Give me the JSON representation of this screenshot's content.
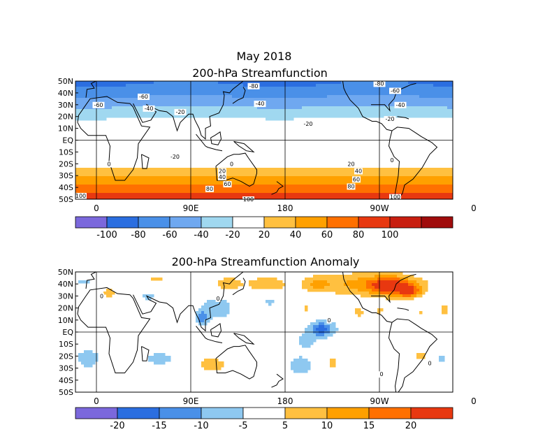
{
  "figure": {
    "title_line1": "May 2018",
    "title_line2": "200-hPa Streamfunction"
  },
  "chart_data": [
    {
      "type": "heatmap",
      "title": "200-hPa Streamfunction",
      "xlabel": "",
      "ylabel": "",
      "x_ticks": [
        "0",
        "90E",
        "180",
        "90W",
        "0"
      ],
      "x_tick_lon": [
        0,
        90,
        180,
        270,
        360
      ],
      "y_ticks": [
        "50N",
        "40N",
        "30N",
        "20N",
        "10N",
        "EQ",
        "10S",
        "20S",
        "30S",
        "40S",
        "50S"
      ],
      "y_tick_lat": [
        50,
        40,
        30,
        20,
        10,
        0,
        -10,
        -20,
        -30,
        -40,
        -50
      ],
      "xlim": [
        -20,
        340
      ],
      "ylim": [
        -50,
        50
      ],
      "lat_profile": [
        {
          "lat": 50,
          "value": -85
        },
        {
          "lat": 45,
          "value": -75
        },
        {
          "lat": 40,
          "value": -68
        },
        {
          "lat": 35,
          "value": -55
        },
        {
          "lat": 30,
          "value": -45
        },
        {
          "lat": 25,
          "value": -30
        },
        {
          "lat": 20,
          "value": -22
        },
        {
          "lat": 15,
          "value": -12
        },
        {
          "lat": 10,
          "value": -8
        },
        {
          "lat": 5,
          "value": -5
        },
        {
          "lat": 0,
          "value": -5
        },
        {
          "lat": -5,
          "value": -10
        },
        {
          "lat": -10,
          "value": -12
        },
        {
          "lat": -15,
          "value": -8
        },
        {
          "lat": -20,
          "value": 5
        },
        {
          "lat": -25,
          "value": 25
        },
        {
          "lat": -30,
          "value": 40
        },
        {
          "lat": -35,
          "value": 55
        },
        {
          "lat": -40,
          "value": 68
        },
        {
          "lat": -45,
          "value": 85
        },
        {
          "lat": -50,
          "value": 100
        }
      ],
      "contour_labels": [
        {
          "text": "-80",
          "lon": 150,
          "lat": 46
        },
        {
          "text": "-60",
          "lon": 45,
          "lat": 37
        },
        {
          "text": "-60",
          "lon": 285,
          "lat": 42
        },
        {
          "text": "-80",
          "lon": 270,
          "lat": 48
        },
        {
          "text": "-40",
          "lon": 50,
          "lat": 27
        },
        {
          "text": "-40",
          "lon": 156,
          "lat": 31
        },
        {
          "text": "-40",
          "lon": 290,
          "lat": 30
        },
        {
          "text": "-60",
          "lon": 2,
          "lat": 30
        },
        {
          "text": "-20",
          "lon": 80,
          "lat": 24
        },
        {
          "text": "-20",
          "lon": 202,
          "lat": 14
        },
        {
          "text": "-20",
          "lon": 280,
          "lat": 18
        },
        {
          "text": "-20",
          "lon": 75,
          "lat": -14
        },
        {
          "text": "0",
          "lon": 12,
          "lat": -20
        },
        {
          "text": "0",
          "lon": 129,
          "lat": -20
        },
        {
          "text": "0",
          "lon": 282,
          "lat": -17
        },
        {
          "text": "20",
          "lon": 120,
          "lat": -26
        },
        {
          "text": "20",
          "lon": 243,
          "lat": -20
        },
        {
          "text": "40",
          "lon": 120,
          "lat": -31
        },
        {
          "text": "40",
          "lon": 250,
          "lat": -26
        },
        {
          "text": "60",
          "lon": 125,
          "lat": -37
        },
        {
          "text": "60",
          "lon": 248,
          "lat": -33
        },
        {
          "text": "80",
          "lon": 108,
          "lat": -41
        },
        {
          "text": "80",
          "lon": 243,
          "lat": -39
        },
        {
          "text": "100",
          "lon": -15,
          "lat": -47
        },
        {
          "text": "100",
          "lon": 145,
          "lat": -50
        },
        {
          "text": "100",
          "lon": 285,
          "lat": -48
        }
      ],
      "colorbar": {
        "labels": [
          "-100",
          "-80",
          "-60",
          "-40",
          "-20",
          "20",
          "40",
          "60",
          "80",
          "100"
        ],
        "colors": [
          "#7b68dc",
          "#2b6ee0",
          "#4a90e8",
          "#6fa8f0",
          "#a0d8f0",
          "#ffffff",
          "#ffc040",
          "#ffa000",
          "#ff7000",
          "#e83810",
          "#c81e10",
          "#a00c0c"
        ]
      }
    },
    {
      "type": "heatmap",
      "title": "200-hPa Streamfunction Anomaly",
      "xlabel": "",
      "ylabel": "",
      "x_ticks": [
        "0",
        "90E",
        "180",
        "90W",
        "0"
      ],
      "x_tick_lon": [
        0,
        90,
        180,
        270,
        360
      ],
      "y_ticks": [
        "50N",
        "40N",
        "30N",
        "20N",
        "10N",
        "EQ",
        "10S",
        "20S",
        "30S",
        "40S",
        "50S"
      ],
      "y_tick_lat": [
        50,
        40,
        30,
        20,
        10,
        0,
        -10,
        -20,
        -30,
        -40,
        -50
      ],
      "xlim": [
        -20,
        340
      ],
      "ylim": [
        -50,
        50
      ],
      "blobs": [
        {
          "lon": 260,
          "lat": 40,
          "rx": 55,
          "ry": 10,
          "value": 12
        },
        {
          "lon": 280,
          "lat": 38,
          "rx": 18,
          "ry": 7,
          "value": 19
        },
        {
          "lon": 300,
          "lat": 33,
          "rx": 12,
          "ry": 6,
          "value": 16
        },
        {
          "lon": 125,
          "lat": 40,
          "rx": 15,
          "ry": 7,
          "value": 8
        },
        {
          "lon": 162,
          "lat": 40,
          "rx": 18,
          "ry": 6,
          "value": 9
        },
        {
          "lon": 210,
          "lat": 40,
          "rx": 12,
          "ry": 6,
          "value": 7
        },
        {
          "lon": 12,
          "lat": 32,
          "rx": 8,
          "ry": 6,
          "value": 7
        },
        {
          "lon": 58,
          "lat": 44,
          "rx": 12,
          "ry": 5,
          "value": 6
        },
        {
          "lon": 310,
          "lat": 17,
          "rx": 8,
          "ry": 6,
          "value": 8
        },
        {
          "lon": 332,
          "lat": 18,
          "rx": 6,
          "ry": 6,
          "value": 7
        },
        {
          "lon": 200,
          "lat": 20,
          "rx": 5,
          "ry": 4,
          "value": 6
        },
        {
          "lon": 250,
          "lat": 17,
          "rx": 6,
          "ry": 6,
          "value": 7
        },
        {
          "lon": 270,
          "lat": 18,
          "rx": 7,
          "ry": 5,
          "value": 6
        },
        {
          "lon": 310,
          "lat": -20,
          "rx": 8,
          "ry": 5,
          "value": 7
        },
        {
          "lon": 110,
          "lat": -27,
          "rx": 18,
          "ry": 9,
          "value": 7
        },
        {
          "lon": 225,
          "lat": -25,
          "rx": 6,
          "ry": 6,
          "value": 7
        },
        {
          "lon": 175,
          "lat": -20,
          "rx": 4,
          "ry": 3,
          "value": 6
        },
        {
          "lon": 115,
          "lat": 20,
          "rx": 18,
          "ry": 12,
          "value": -8
        },
        {
          "lon": 100,
          "lat": 12,
          "rx": 6,
          "ry": 6,
          "value": -11
        },
        {
          "lon": 50,
          "lat": 30,
          "rx": 12,
          "ry": 6,
          "value": -6
        },
        {
          "lon": 165,
          "lat": 25,
          "rx": 8,
          "ry": 5,
          "value": -6
        },
        {
          "lon": 215,
          "lat": 3,
          "rx": 20,
          "ry": 9,
          "value": -8
        },
        {
          "lon": 215,
          "lat": 2,
          "rx": 8,
          "ry": 5,
          "value": -11
        },
        {
          "lon": 310,
          "lat": 24,
          "rx": 12,
          "ry": 8,
          "value": -7
        },
        {
          "lon": -8,
          "lat": -22,
          "rx": 14,
          "ry": 9,
          "value": -8
        },
        {
          "lon": 60,
          "lat": -22,
          "rx": 18,
          "ry": 7,
          "value": -7
        },
        {
          "lon": 195,
          "lat": -28,
          "rx": 14,
          "ry": 10,
          "value": -8
        },
        {
          "lon": 200,
          "lat": -8,
          "rx": 10,
          "ry": 7,
          "value": -6
        },
        {
          "lon": 330,
          "lat": -22,
          "rx": 7,
          "ry": 5,
          "value": -6
        },
        {
          "lon": -12,
          "lat": 42,
          "rx": 10,
          "ry": 5,
          "value": -6
        }
      ],
      "contour_labels": [
        {
          "text": "0",
          "lon": 116,
          "lat": 28
        },
        {
          "text": "0",
          "lon": 5,
          "lat": 30
        },
        {
          "text": "0",
          "lon": 222,
          "lat": 10
        },
        {
          "text": "0",
          "lon": 318,
          "lat": -26
        },
        {
          "text": "0",
          "lon": 272,
          "lat": -35
        }
      ],
      "colorbar": {
        "labels": [
          "-20",
          "-15",
          "-10",
          "-5",
          "5",
          "10",
          "15",
          "20"
        ],
        "colors": [
          "#7b68dc",
          "#2b6ee0",
          "#4a90e8",
          "#8ec8f0",
          "#ffffff",
          "#ffc040",
          "#ffa000",
          "#ff7000",
          "#e83810"
        ]
      }
    }
  ]
}
